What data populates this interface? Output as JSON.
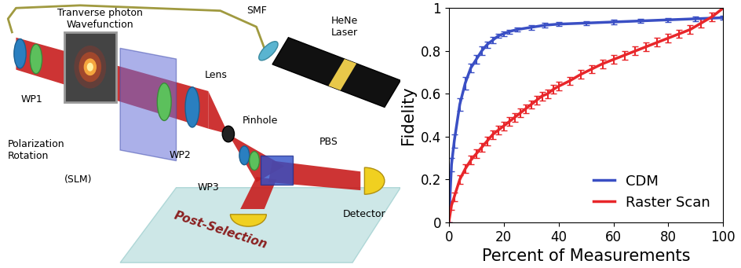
{
  "diagram": {
    "labels": {
      "wavefunction": "Tranverse photon\nWavefunction",
      "smf": "SMF",
      "laser": "HeNe\nLaser",
      "wp1": "WP1",
      "polarization": "Polarization\nRotation",
      "slm": "(SLM)",
      "lens": "Lens",
      "pinhole": "Pinhole",
      "pbs": "PBS",
      "wp2": "WP2",
      "wp3": "WP3",
      "detector": "Detector",
      "postselection": "Post-Selection"
    }
  },
  "chart_data": {
    "type": "line",
    "x_label": "Percent of Measurements",
    "y_label": "Fidelity",
    "xlim": [
      0,
      100
    ],
    "xticks": [
      0,
      20,
      40,
      60,
      80,
      100
    ],
    "ylim": [
      0,
      1
    ],
    "yticks": [
      0,
      0.2,
      0.4,
      0.6,
      0.8,
      1
    ],
    "legend": "lower right",
    "series": [
      {
        "name": "CDM",
        "color": "#3a4fc4",
        "x": [
          0,
          1,
          2,
          4,
          6,
          8,
          10,
          12,
          14,
          16,
          18,
          20,
          22,
          25,
          30,
          35,
          40,
          50,
          60,
          70,
          80,
          90,
          100
        ],
        "values": [
          0,
          0.27,
          0.38,
          0.55,
          0.65,
          0.72,
          0.76,
          0.8,
          0.83,
          0.85,
          0.87,
          0.88,
          0.89,
          0.9,
          0.91,
          0.92,
          0.925,
          0.93,
          0.935,
          0.94,
          0.945,
          0.95,
          0.955
        ],
        "errors": [
          0,
          0.03,
          0.03,
          0.03,
          0.03,
          0.02,
          0.02,
          0.02,
          0.015,
          0.015,
          0.01,
          0.01,
          0.01,
          0.01,
          0.01,
          0.01,
          0.01,
          0.01,
          0.01,
          0.01,
          0.01,
          0.01,
          0.01
        ]
      },
      {
        "name": "Raster Scan",
        "color": "#e8262a",
        "x": [
          0,
          1,
          2,
          4,
          6,
          8,
          10,
          12,
          14,
          16,
          18,
          20,
          22,
          24,
          26,
          28,
          30,
          32,
          34,
          36,
          38,
          40,
          44,
          48,
          52,
          56,
          60,
          64,
          68,
          72,
          76,
          80,
          84,
          88,
          92,
          96,
          100
        ],
        "values": [
          0,
          0.08,
          0.12,
          0.2,
          0.25,
          0.29,
          0.32,
          0.35,
          0.38,
          0.41,
          0.43,
          0.45,
          0.47,
          0.49,
          0.51,
          0.53,
          0.55,
          0.57,
          0.59,
          0.6,
          0.62,
          0.635,
          0.66,
          0.69,
          0.715,
          0.74,
          0.76,
          0.78,
          0.8,
          0.82,
          0.84,
          0.86,
          0.88,
          0.9,
          0.93,
          0.96,
          1.0
        ],
        "errors": [
          0,
          0.02,
          0.02,
          0.02,
          0.02,
          0.02,
          0.02,
          0.02,
          0.02,
          0.02,
          0.02,
          0.02,
          0.02,
          0.02,
          0.02,
          0.02,
          0.02,
          0.02,
          0.02,
          0.02,
          0.02,
          0.02,
          0.02,
          0.02,
          0.02,
          0.02,
          0.02,
          0.02,
          0.02,
          0.02,
          0.02,
          0.02,
          0.02,
          0.02,
          0.02,
          0.02,
          0
        ]
      }
    ]
  }
}
